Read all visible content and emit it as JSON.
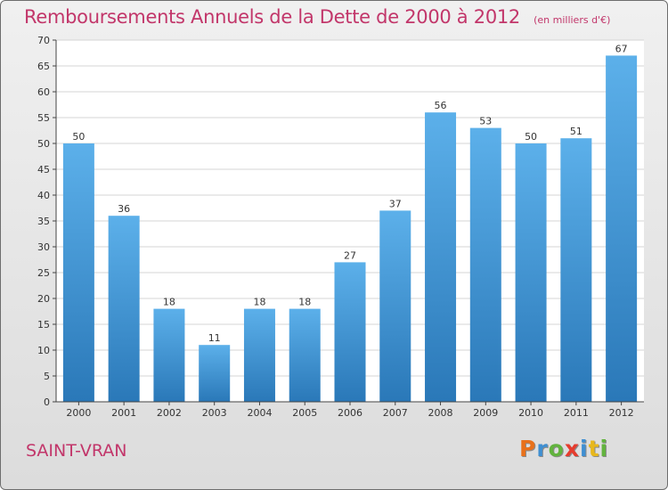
{
  "header": {
    "title": "Remboursements Annuels de la Dette de 2000 à 2012",
    "subtitle": "(en milliers d'€)"
  },
  "footer": {
    "city": "SAINT-VRAN",
    "brand": "Proxiti",
    "brand_colors": [
      "#e8711c",
      "#3f8fd2",
      "#62b33e",
      "#e63c2e",
      "#3f8fd2",
      "#e8b81c",
      "#62b33e"
    ]
  },
  "chart_data": {
    "type": "bar",
    "title": "Remboursements Annuels de la Dette de 2000 à 2012",
    "subtitle": "(en milliers d'€)",
    "categories": [
      "2000",
      "2001",
      "2002",
      "2003",
      "2004",
      "2005",
      "2006",
      "2007",
      "2008",
      "2009",
      "2010",
      "2011",
      "2012"
    ],
    "values": [
      50,
      36,
      18,
      11,
      18,
      18,
      27,
      37,
      56,
      53,
      50,
      51,
      67
    ],
    "ylim": [
      0,
      70
    ],
    "yticks": [
      0,
      5,
      10,
      15,
      20,
      25,
      30,
      35,
      40,
      45,
      50,
      55,
      60,
      65,
      70
    ],
    "grid": true,
    "colors": {
      "bar_top": "#5cb0ea",
      "bar_bottom": "#2a78b8",
      "grid": "#d4d4d4",
      "axis": "#444444",
      "plot_bg": "#ffffff"
    }
  }
}
